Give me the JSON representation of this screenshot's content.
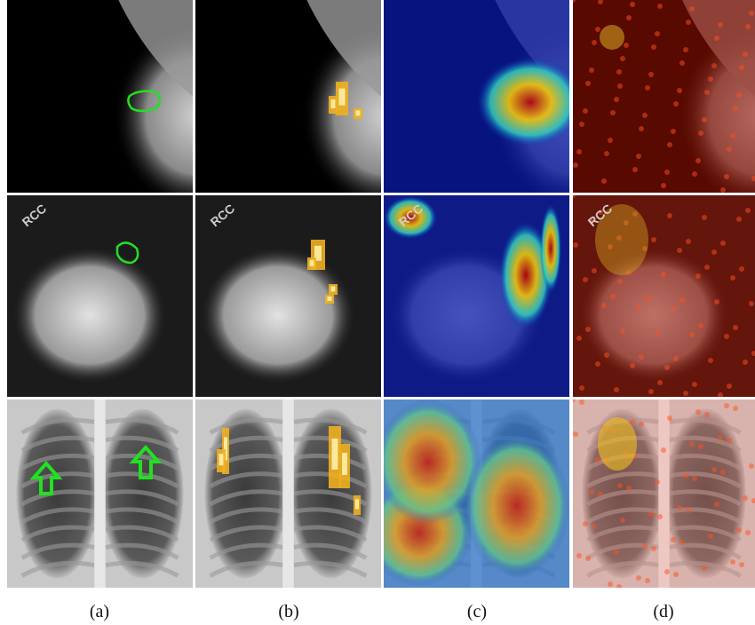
{
  "panel_text": [
    "RCC",
    "RCC",
    "RCC",
    "RCC"
  ],
  "captions": [
    "(a)",
    "(b)",
    "(c)",
    "(d)"
  ]
}
